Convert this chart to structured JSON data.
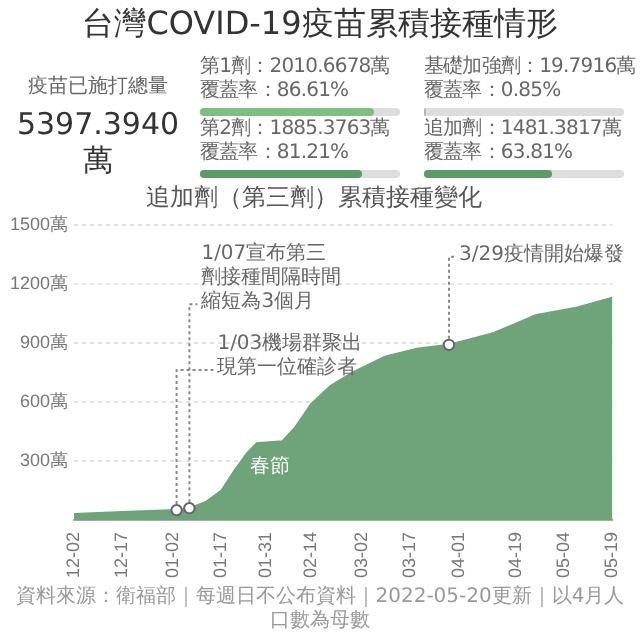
{
  "chart_data": [
    {
      "type": "other",
      "title": "台灣COVID-19疫苗累積接種情形",
      "annotations": [
        "疫苗已施打總量",
        "5397.3940萬"
      ],
      "categories": [
        "第1劑：2010.6678萬",
        "基礎加強劑：19.7916萬",
        "第2劑：1885.3763萬",
        "追加劑：1481.3817萬"
      ],
      "values": [
        86.61,
        0.85,
        81.21,
        63.81
      ],
      "value_labels": [
        "覆蓋率：86.61%",
        "覆蓋率：0.85%",
        "覆蓋率：81.21%",
        "覆蓋率：63.81%"
      ],
      "colors": [
        "#7cbf7e",
        "#b5b5b5",
        "#5e9a67",
        "#5e9a67"
      ]
    },
    {
      "type": "area",
      "title": "追加劑（第三劑）累積接種變化",
      "x": [
        "2021-12-02",
        "2021-12-17",
        "2022-01-03",
        "2022-01-07",
        "2022-01-12",
        "2022-01-17",
        "2022-01-21",
        "2022-01-25",
        "2022-01-28",
        "2022-02-05",
        "2022-02-09",
        "2022-02-14",
        "2022-02-20",
        "2022-02-27",
        "2022-03-09",
        "2022-03-19",
        "2022-03-29",
        "2022-04-05",
        "2022-04-12",
        "2022-04-25",
        "2022-05-08",
        "2022-05-19"
      ],
      "series": [
        {
          "color": "#6fa37a",
          "values": [
            30,
            40,
            50,
            60,
            90,
            150,
            250,
            340,
            390,
            400,
            470,
            590,
            680,
            750,
            830,
            870,
            890,
            920,
            950,
            1040,
            1080,
            1130
          ]
        }
      ],
      "xlim": [
        "2021-12-02",
        "2022-05-19"
      ],
      "xticks": [
        {
          "value": "2021-12-02",
          "label": "12-02"
        },
        {
          "value": "2021-12-17",
          "label": "12-17"
        },
        {
          "value": "2022-01-02",
          "label": "01-02"
        },
        {
          "value": "2022-01-17",
          "label": "01-17"
        },
        {
          "value": "2022-01-31",
          "label": "01-31"
        },
        {
          "value": "2022-02-14",
          "label": "02-14"
        },
        {
          "value": "2022-03-02",
          "label": "03-02"
        },
        {
          "value": "2022-03-17",
          "label": "03-17"
        },
        {
          "value": "2022-04-01",
          "label": "04-01"
        },
        {
          "value": "2022-04-19",
          "label": "04-19"
        },
        {
          "value": "2022-05-04",
          "label": "05-04"
        },
        {
          "value": "2022-05-19",
          "label": "05-19"
        }
      ],
      "ylim": [
        0,
        1500
      ],
      "yticks": [
        {
          "value": 300,
          "label": "300萬"
        },
        {
          "value": 600,
          "label": "600萬"
        },
        {
          "value": 900,
          "label": "900萬"
        },
        {
          "value": 1200,
          "label": "1200萬"
        },
        {
          "value": 1500,
          "label": "1500萬"
        }
      ],
      "grid": "y",
      "annotations": [
        {
          "text": "1/03機場群聚出現第一位確診者",
          "x": "2022-01-03",
          "y": 50
        },
        {
          "text": "1/07宣布第三劑接種間隔時間縮短為3個月",
          "x": "2022-01-07",
          "y": 60
        },
        {
          "text": "春節",
          "x": "2022-02-01",
          "y": 400
        },
        {
          "text": "3/29疫情開始爆發",
          "x": "2022-03-29",
          "y": 890
        },
        "資料來源：衛福部｜每週日不公布資料｜2022-05-20更新｜以4月人口數為母數"
      ]
    }
  ]
}
